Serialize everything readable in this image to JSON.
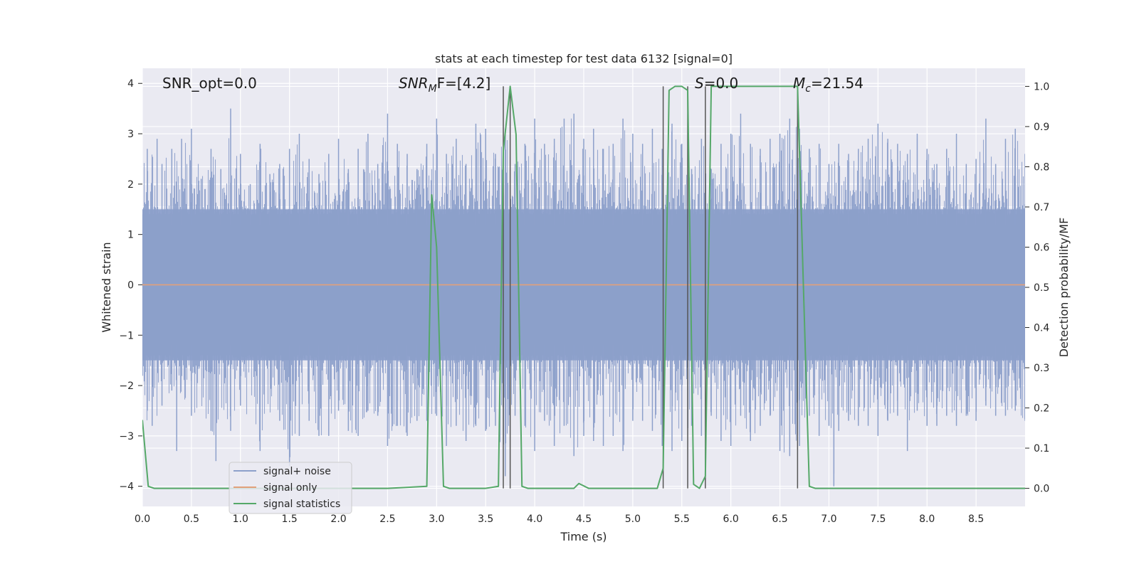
{
  "chart_data": {
    "type": "line",
    "title": "stats at each timestep for test data 6132 [signal=0]",
    "xlabel": "Time (s)",
    "ylabel": "Whitened strain",
    "ylabel_right": "Detection probability/MF",
    "xlim": [
      0,
      9.0
    ],
    "ylim": [
      -4.4,
      4.3
    ],
    "ylim_right": [
      -0.045,
      1.045
    ],
    "x_ticks": [
      0.0,
      0.5,
      1.0,
      1.5,
      2.0,
      2.5,
      3.0,
      3.5,
      4.0,
      4.5,
      5.0,
      5.5,
      6.0,
      6.5,
      7.0,
      7.5,
      8.0,
      8.5
    ],
    "y_ticks": [
      4,
      3,
      2,
      1,
      0,
      -1,
      -2,
      -3,
      -4
    ],
    "y_ticks_right": [
      1.0,
      0.9,
      0.8,
      0.7,
      0.6,
      0.5,
      0.4,
      0.3,
      0.2,
      0.1,
      0.0
    ],
    "grid": true,
    "legend_position": "lower-left",
    "legend": [
      "signal+ noise",
      "signal only",
      "signal statistics"
    ],
    "colors": {
      "noise": "#8da0cb",
      "signal_only": "#e1a07a",
      "statistics": "#55a868",
      "vlines": "#555555",
      "background": "#eaeaf2"
    },
    "annotations": {
      "snr_opt": "SNR_opt=0.0",
      "snr_mf_main": "SNR",
      "snr_mf_sub": "M",
      "snr_mf_rest": "F=[4.2]",
      "s_var": "S",
      "s_rest": "=0.0",
      "mc_var": "M",
      "mc_sub": "c",
      "mc_rest": "=21.54"
    },
    "noise_series": {
      "name": "signal+ noise",
      "amplitude_std": 1.0,
      "peaks_top": [
        [
          0.05,
          2.7
        ],
        [
          0.15,
          2.9
        ],
        [
          0.2,
          2.4
        ],
        [
          0.3,
          2.7
        ],
        [
          0.4,
          2.9
        ],
        [
          0.5,
          3.1
        ],
        [
          0.6,
          2.1
        ],
        [
          0.7,
          2.7
        ],
        [
          0.8,
          2.3
        ],
        [
          0.9,
          3.5
        ],
        [
          1.0,
          2.6
        ],
        [
          1.1,
          2.0
        ],
        [
          1.2,
          2.8
        ],
        [
          1.3,
          2.2
        ],
        [
          1.4,
          2.4
        ],
        [
          1.5,
          2.7
        ],
        [
          1.6,
          3.0
        ],
        [
          1.7,
          2.5
        ],
        [
          1.8,
          2.2
        ],
        [
          1.9,
          2.6
        ],
        [
          2.0,
          2.9
        ],
        [
          2.1,
          2.3
        ],
        [
          2.2,
          2.7
        ],
        [
          2.3,
          3.0
        ],
        [
          2.4,
          2.4
        ],
        [
          2.5,
          3.4
        ],
        [
          2.6,
          2.8
        ],
        [
          2.7,
          2.6
        ],
        [
          2.8,
          2.3
        ],
        [
          2.9,
          2.8
        ],
        [
          3.0,
          3.3
        ],
        [
          3.1,
          2.6
        ],
        [
          3.2,
          2.9
        ],
        [
          3.3,
          2.4
        ],
        [
          3.4,
          3.2
        ],
        [
          3.5,
          3.1
        ],
        [
          3.6,
          2.6
        ],
        [
          3.7,
          3.1
        ],
        [
          3.8,
          2.4
        ],
        [
          3.9,
          2.8
        ],
        [
          4.0,
          3.3
        ],
        [
          4.1,
          2.8
        ],
        [
          4.2,
          2.9
        ],
        [
          4.3,
          3.3
        ],
        [
          4.4,
          3.4
        ],
        [
          4.5,
          2.9
        ],
        [
          4.6,
          3.1
        ],
        [
          4.7,
          2.7
        ],
        [
          4.8,
          2.8
        ],
        [
          4.9,
          3.3
        ],
        [
          5.0,
          3.0
        ],
        [
          5.1,
          2.8
        ],
        [
          5.2,
          3.1
        ],
        [
          5.3,
          2.7
        ],
        [
          5.4,
          3.2
        ],
        [
          5.5,
          2.8
        ],
        [
          5.6,
          2.3
        ],
        [
          5.7,
          2.9
        ],
        [
          5.8,
          2.3
        ],
        [
          5.9,
          2.8
        ],
        [
          6.0,
          3.0
        ],
        [
          6.1,
          3.4
        ],
        [
          6.2,
          2.8
        ],
        [
          6.3,
          2.7
        ],
        [
          6.4,
          2.9
        ],
        [
          6.5,
          3.0
        ],
        [
          6.6,
          3.3
        ],
        [
          6.7,
          3.1
        ],
        [
          6.8,
          2.7
        ],
        [
          6.9,
          2.8
        ],
        [
          7.0,
          2.4
        ],
        [
          7.1,
          2.8
        ],
        [
          7.2,
          2.6
        ],
        [
          7.3,
          2.7
        ],
        [
          7.4,
          2.9
        ],
        [
          7.5,
          3.2
        ],
        [
          7.6,
          2.9
        ],
        [
          7.7,
          2.8
        ],
        [
          7.8,
          2.6
        ],
        [
          7.9,
          3.0
        ],
        [
          8.0,
          2.7
        ],
        [
          8.1,
          2.4
        ],
        [
          8.2,
          2.7
        ],
        [
          8.3,
          3.0
        ],
        [
          8.4,
          2.4
        ],
        [
          8.5,
          2.5
        ],
        [
          8.6,
          3.3
        ],
        [
          8.7,
          2.4
        ],
        [
          8.8,
          2.9
        ],
        [
          8.9,
          3.1
        ],
        [
          9.0,
          2.6
        ]
      ],
      "peaks_bottom": [
        [
          0.05,
          -2.5
        ],
        [
          0.1,
          -2.8
        ],
        [
          0.2,
          -2.4
        ],
        [
          0.3,
          -2.1
        ],
        [
          0.35,
          -3.3
        ],
        [
          0.5,
          -2.6
        ],
        [
          0.7,
          -2.9
        ],
        [
          0.75,
          -3.5
        ],
        [
          0.9,
          -2.9
        ],
        [
          1.0,
          -2.4
        ],
        [
          1.2,
          -3.3
        ],
        [
          1.4,
          -2.7
        ],
        [
          1.5,
          -3.6
        ],
        [
          1.6,
          -3.0
        ],
        [
          1.7,
          -2.7
        ],
        [
          1.8,
          -3.0
        ],
        [
          1.9,
          -3.0
        ],
        [
          2.0,
          -2.5
        ],
        [
          2.1,
          -2.9
        ],
        [
          2.2,
          -3.0
        ],
        [
          2.3,
          -2.5
        ],
        [
          2.4,
          -2.6
        ],
        [
          2.5,
          -3.2
        ],
        [
          2.6,
          -2.8
        ],
        [
          2.7,
          -3.0
        ],
        [
          2.8,
          -2.7
        ],
        [
          2.9,
          -2.7
        ],
        [
          3.0,
          -2.6
        ],
        [
          3.1,
          -3.2
        ],
        [
          3.2,
          -2.8
        ],
        [
          3.3,
          -3.1
        ],
        [
          3.4,
          -2.8
        ],
        [
          3.5,
          -2.9
        ],
        [
          3.6,
          -2.8
        ],
        [
          3.7,
          -3.8
        ],
        [
          3.8,
          -2.6
        ],
        [
          3.9,
          -2.8
        ],
        [
          4.0,
          -3.3
        ],
        [
          4.1,
          -2.7
        ],
        [
          4.2,
          -3.2
        ],
        [
          4.3,
          -2.8
        ],
        [
          4.4,
          -3.4
        ],
        [
          4.5,
          -3.0
        ],
        [
          4.6,
          -3.1
        ],
        [
          4.7,
          -3.2
        ],
        [
          4.8,
          -3.0
        ],
        [
          4.9,
          -3.3
        ],
        [
          5.0,
          -2.7
        ],
        [
          5.1,
          -2.7
        ],
        [
          5.2,
          -2.9
        ],
        [
          5.3,
          -3.2
        ],
        [
          5.4,
          -3.3
        ],
        [
          5.5,
          -3.1
        ],
        [
          5.6,
          -2.8
        ],
        [
          5.7,
          -3.0
        ],
        [
          5.8,
          -2.6
        ],
        [
          5.9,
          -3.1
        ],
        [
          6.0,
          -3.2
        ],
        [
          6.1,
          -2.6
        ],
        [
          6.2,
          -3.1
        ],
        [
          6.3,
          -2.8
        ],
        [
          6.4,
          -2.6
        ],
        [
          6.5,
          -3.3
        ],
        [
          6.6,
          -3.4
        ],
        [
          6.7,
          -3.2
        ],
        [
          6.8,
          -2.6
        ],
        [
          6.9,
          -3.0
        ],
        [
          7.0,
          -2.8
        ],
        [
          7.05,
          -4.0
        ],
        [
          7.1,
          -2.9
        ],
        [
          7.2,
          -2.7
        ],
        [
          7.3,
          -2.8
        ],
        [
          7.4,
          -2.8
        ],
        [
          7.5,
          -3.0
        ],
        [
          7.6,
          -2.7
        ],
        [
          7.7,
          -2.6
        ],
        [
          7.8,
          -3.3
        ],
        [
          7.9,
          -2.5
        ],
        [
          8.0,
          -2.8
        ],
        [
          8.1,
          -2.8
        ],
        [
          8.2,
          -2.6
        ],
        [
          8.3,
          -2.8
        ],
        [
          8.4,
          -2.6
        ],
        [
          8.5,
          -2.7
        ],
        [
          8.6,
          -2.4
        ],
        [
          8.7,
          -2.6
        ],
        [
          8.8,
          -2.6
        ],
        [
          8.9,
          -2.5
        ],
        [
          9.0,
          -2.7
        ]
      ]
    },
    "signal_only_series": {
      "name": "signal only",
      "x": [
        0.0,
        9.0
      ],
      "y": [
        0.0,
        0.0
      ]
    },
    "statistics_series": {
      "name": "signal statistics",
      "x": [
        0.0,
        0.06,
        0.12,
        0.5,
        1.0,
        1.5,
        2.0,
        2.5,
        2.9,
        2.95,
        3.0,
        3.07,
        3.13,
        3.18,
        3.5,
        3.63,
        3.68,
        3.75,
        3.81,
        3.87,
        3.93,
        4.0,
        4.4,
        4.45,
        4.55,
        4.6,
        5.0,
        5.25,
        5.31,
        5.37,
        5.43,
        5.5,
        5.56,
        5.62,
        5.68,
        5.74,
        5.8,
        6.0,
        6.5,
        6.68,
        6.74,
        6.8,
        6.86,
        7.0,
        8.0,
        9.0
      ],
      "y": [
        0.17,
        0.005,
        0.0,
        0.0,
        0.0,
        0.0,
        0.0,
        0.0,
        0.005,
        0.73,
        0.6,
        0.005,
        0.0,
        0.0,
        0.0,
        0.005,
        0.84,
        1.0,
        0.88,
        0.005,
        0.0,
        0.0,
        0.0,
        0.012,
        0.0,
        0.0,
        0.0,
        0.0,
        0.05,
        0.99,
        1.0,
        1.0,
        0.99,
        0.01,
        0.0,
        0.03,
        1.0,
        1.0,
        1.0,
        1.0,
        0.5,
        0.005,
        0.0,
        0.0,
        0.0,
        0.0
      ]
    },
    "vertical_lines_x": [
      3.68,
      3.75,
      5.31,
      5.56,
      5.74,
      6.68
    ],
    "vertical_lines_range_right": [
      0.0,
      1.0
    ]
  }
}
